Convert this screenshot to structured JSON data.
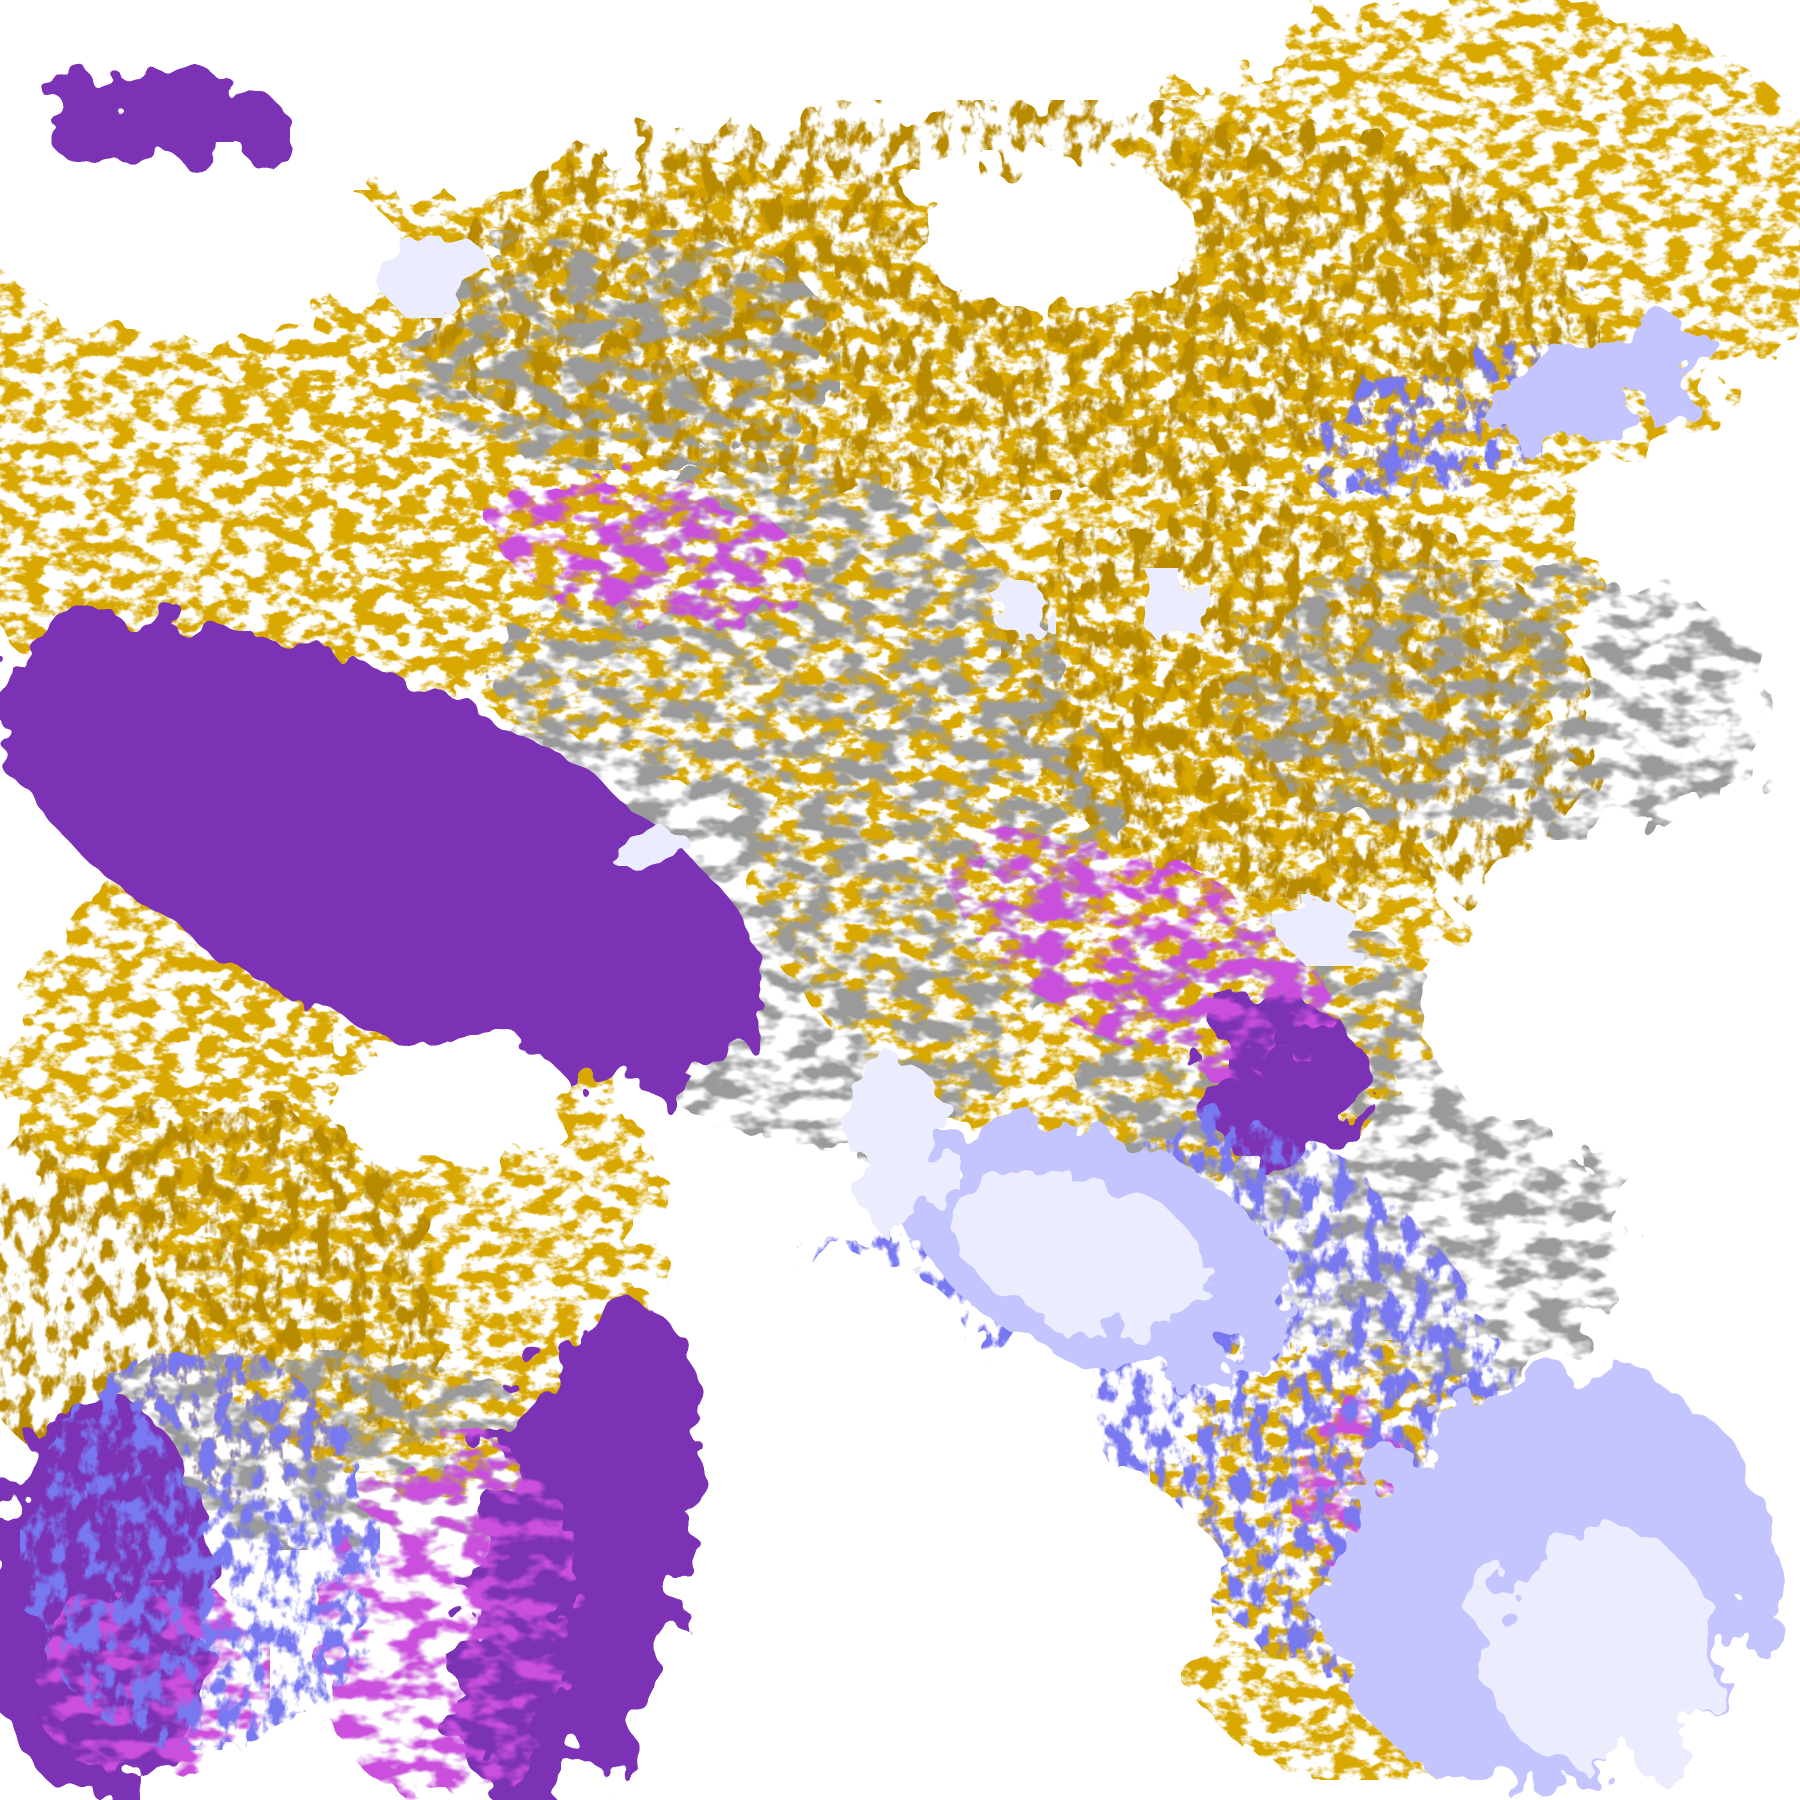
{
  "image": {
    "kind": "satellite cloud-type classification map",
    "palette": {
      "clear": "#ffffff",
      "gold": "#d9a800",
      "dark_gold": "#b88a00",
      "purple": "#7b32b4",
      "magenta": "#c94fdc",
      "periwinkle": "#7878f0",
      "lavender": "#c4c4ff",
      "pale_lavender": "#ececff",
      "gray": "#9a9a9a",
      "light_gray": "#b8b8b8"
    }
  }
}
